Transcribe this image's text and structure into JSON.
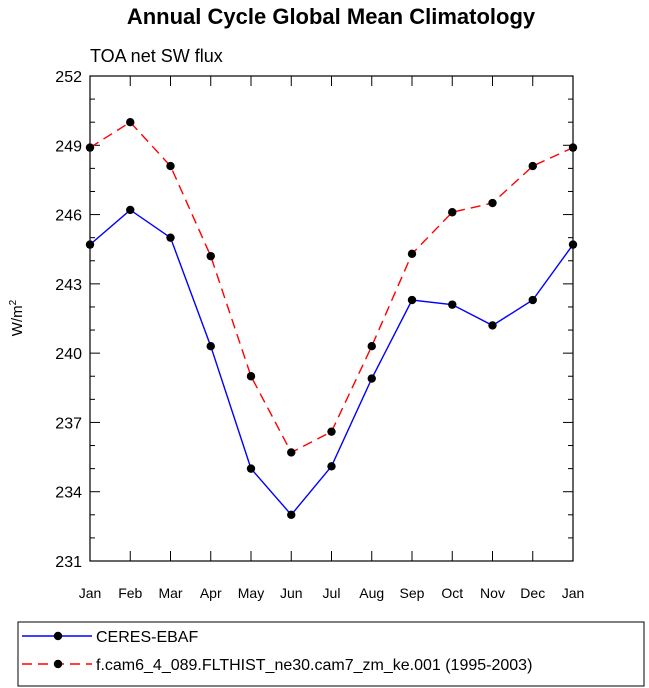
{
  "chart_data": {
    "type": "line",
    "title": "Annual Cycle Global Mean Climatology",
    "subtitle": "TOA net SW flux",
    "ylabel": "W/m",
    "ylabel_sup": "2",
    "xlabel": "",
    "categories": [
      "Jan",
      "Feb",
      "Mar",
      "Apr",
      "May",
      "Jun",
      "Jul",
      "Aug",
      "Sep",
      "Oct",
      "Nov",
      "Dec",
      "Jan"
    ],
    "ylim": [
      231,
      252
    ],
    "yticks": [
      231,
      234,
      237,
      240,
      243,
      246,
      249,
      252
    ],
    "series": [
      {
        "name": "CERES-EBAF",
        "color": "#0000ff",
        "dash": "solid",
        "values": [
          244.7,
          246.2,
          245.0,
          240.3,
          235.0,
          233.0,
          235.1,
          238.9,
          242.3,
          242.1,
          241.2,
          242.3,
          244.7
        ]
      },
      {
        "name": "f.cam6_4_089.FLTHIST_ne30.cam7_zm_ke.001 (1995-2003)",
        "color": "#ff0000",
        "dash": "dashed",
        "values": [
          248.9,
          250.0,
          248.1,
          244.2,
          239.0,
          235.7,
          236.6,
          240.3,
          244.3,
          246.1,
          246.5,
          248.1,
          248.9
        ]
      }
    ],
    "legend_position": "bottom"
  }
}
